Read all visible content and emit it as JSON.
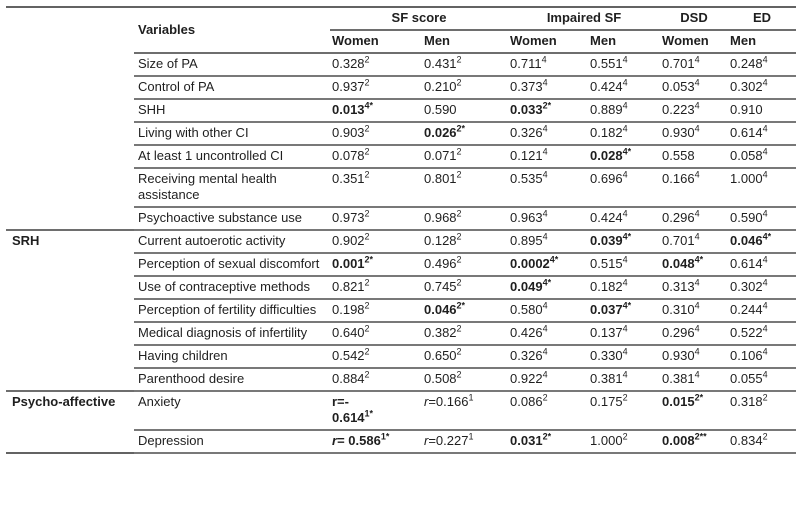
{
  "colors": {
    "border": "#6e6e6e",
    "text": "#1f1f1f",
    "background": "#ffffff"
  },
  "table": {
    "corner_label": "",
    "variables_header": "Variables",
    "column_groups": [
      {
        "label": "SF score",
        "span": 2
      },
      {
        "label": "Impaired SF",
        "span": 2
      },
      {
        "label": "DSD",
        "span": 1
      },
      {
        "label": "ED",
        "span": 1
      }
    ],
    "sub_headers": [
      "Women",
      "Men",
      "Women",
      "Men",
      "Women",
      "Men"
    ],
    "groups": [
      {
        "label": "",
        "rows": [
          {
            "variable": "Size of PA",
            "cells": [
              {
                "t": "0.328",
                "s": "2"
              },
              {
                "t": "0.431",
                "s": "2"
              },
              {
                "t": "0.711",
                "s": "4"
              },
              {
                "t": "0.551",
                "s": "4"
              },
              {
                "t": "0.701",
                "s": "4"
              },
              {
                "t": "0.248",
                "s": "4"
              }
            ]
          },
          {
            "variable": "Control of PA",
            "cells": [
              {
                "t": "0.937",
                "s": "2"
              },
              {
                "t": "0.210",
                "s": "2"
              },
              {
                "t": "0.373",
                "s": "4"
              },
              {
                "t": "0.424",
                "s": "4"
              },
              {
                "t": "0.053",
                "s": "4"
              },
              {
                "t": "0.302",
                "s": "4"
              }
            ]
          },
          {
            "variable": "SHH",
            "cells": [
              {
                "t": "0.013",
                "s": "4*",
                "b": true
              },
              {
                "t": "0.590"
              },
              {
                "t": "0.033",
                "s": "2*",
                "b": true
              },
              {
                "t": "0.889",
                "s": "4"
              },
              {
                "t": "0.223",
                "s": "4"
              },
              {
                "t": "0.910"
              }
            ]
          },
          {
            "variable": "Living with other CI",
            "cells": [
              {
                "t": "0.903",
                "s": "2"
              },
              {
                "t": "0.026",
                "s": "2*",
                "b": true
              },
              {
                "t": "0.326",
                "s": "4"
              },
              {
                "t": "0.182",
                "s": "4"
              },
              {
                "t": "0.930",
                "s": "4"
              },
              {
                "t": "0.614",
                "s": "4"
              }
            ]
          },
          {
            "variable": "At least 1 uncontrolled CI",
            "cells": [
              {
                "t": "0.078",
                "s": "2"
              },
              {
                "t": "0.071",
                "s": "2"
              },
              {
                "t": "0.121",
                "s": "4"
              },
              {
                "t": "0.028",
                "s": "4*",
                "b": true
              },
              {
                "t": "0.558"
              },
              {
                "t": "0.058",
                "s": "4"
              }
            ]
          },
          {
            "variable": "Receiving mental health assistance",
            "cells": [
              {
                "t": "0.351",
                "s": "2"
              },
              {
                "t": "0.801",
                "s": "2"
              },
              {
                "t": "0.535",
                "s": "4"
              },
              {
                "t": "0.696",
                "s": "4"
              },
              {
                "t": "0.166",
                "s": "4"
              },
              {
                "t": "1.000",
                "s": "4"
              }
            ]
          },
          {
            "variable": "Psychoactive substance use",
            "cells": [
              {
                "t": "0.973",
                "s": "2"
              },
              {
                "t": "0.968",
                "s": "2"
              },
              {
                "t": "0.963",
                "s": "4"
              },
              {
                "t": "0.424",
                "s": "4"
              },
              {
                "t": "0.296",
                "s": "4"
              },
              {
                "t": "0.590",
                "s": "4"
              }
            ]
          }
        ]
      },
      {
        "label": "SRH",
        "rows": [
          {
            "variable": "Current autoerotic activity",
            "cells": [
              {
                "t": "0.902",
                "s": "2"
              },
              {
                "t": "0.128",
                "s": "2"
              },
              {
                "t": "0.895",
                "s": "4"
              },
              {
                "t": "0.039",
                "s": "4*",
                "b": true
              },
              {
                "t": "0.701",
                "s": "4"
              },
              {
                "t": "0.046",
                "s": "4*",
                "b": true
              }
            ]
          },
          {
            "variable": "Perception of sexual discomfort",
            "cells": [
              {
                "t": "0.001",
                "s": "2*",
                "b": true
              },
              {
                "t": "0.496",
                "s": "2"
              },
              {
                "t": "0.0002",
                "s": "4*",
                "b": true
              },
              {
                "t": "0.515",
                "s": "4"
              },
              {
                "t": "0.048",
                "s": "4*",
                "b": true
              },
              {
                "t": "0.614",
                "s": "4"
              }
            ]
          },
          {
            "variable": "Use of contraceptive methods",
            "cells": [
              {
                "t": "0.821",
                "s": "2"
              },
              {
                "t": "0.745",
                "s": "2"
              },
              {
                "t": "0.049",
                "s": "4*",
                "b": true
              },
              {
                "t": "0.182",
                "s": "4"
              },
              {
                "t": "0.313",
                "s": "4"
              },
              {
                "t": "0.302",
                "s": "4"
              }
            ]
          },
          {
            "variable": "Perception of fertility difficulties",
            "cells": [
              {
                "t": "0.198",
                "s": "2"
              },
              {
                "t": "0.046",
                "s": "2*",
                "b": true
              },
              {
                "t": "0.580",
                "s": "4"
              },
              {
                "t": "0.037",
                "s": "4*",
                "b": true
              },
              {
                "t": "0.310",
                "s": "4"
              },
              {
                "t": "0.244",
                "s": "4"
              }
            ]
          },
          {
            "variable": "Medical diagnosis of infertility",
            "cells": [
              {
                "t": "0.640",
                "s": "2"
              },
              {
                "t": "0.382",
                "s": "2"
              },
              {
                "t": "0.426",
                "s": "4"
              },
              {
                "t": "0.137",
                "s": "4"
              },
              {
                "t": "0.296",
                "s": "4"
              },
              {
                "t": "0.522",
                "s": "4"
              }
            ]
          },
          {
            "variable": "Having children",
            "cells": [
              {
                "t": "0.542",
                "s": "2"
              },
              {
                "t": "0.650",
                "s": "2"
              },
              {
                "t": "0.326",
                "s": "4"
              },
              {
                "t": "0.330",
                "s": "4"
              },
              {
                "t": "0.930",
                "s": "4"
              },
              {
                "t": "0.106",
                "s": "4"
              }
            ]
          },
          {
            "variable": "Parenthood desire",
            "cells": [
              {
                "t": "0.884",
                "s": "2"
              },
              {
                "t": "0.508",
                "s": "2"
              },
              {
                "t": "0.922",
                "s": "4"
              },
              {
                "t": "0.381",
                "s": "4"
              },
              {
                "t": "0.381",
                "s": "4"
              },
              {
                "t": "0.055",
                "s": "4"
              }
            ]
          }
        ]
      },
      {
        "label": "Psycho-affective",
        "rows": [
          {
            "variable": "Anxiety",
            "cells": [
              {
                "t": "r=-\n0.614",
                "s": "1*",
                "b": true
              },
              {
                "pre": "r",
                "t": "=0.166",
                "s": "1"
              },
              {
                "t": "0.086",
                "s": "2"
              },
              {
                "t": "0.175",
                "s": "2"
              },
              {
                "t": "0.015",
                "s": "2*",
                "b": true
              },
              {
                "t": "0.318",
                "s": "2"
              }
            ]
          },
          {
            "variable": "Depression",
            "cells": [
              {
                "pre": "r",
                "t": "= 0.586",
                "s": "1*",
                "b": true
              },
              {
                "pre": "r",
                "t": "=0.227",
                "s": "1"
              },
              {
                "t": "0.031",
                "s": "2*",
                "b": true
              },
              {
                "t": "1.000",
                "s": "2"
              },
              {
                "t": "0.008",
                "s": "2**",
                "b": true
              },
              {
                "t": "0.834",
                "s": "2"
              }
            ]
          }
        ]
      }
    ]
  }
}
